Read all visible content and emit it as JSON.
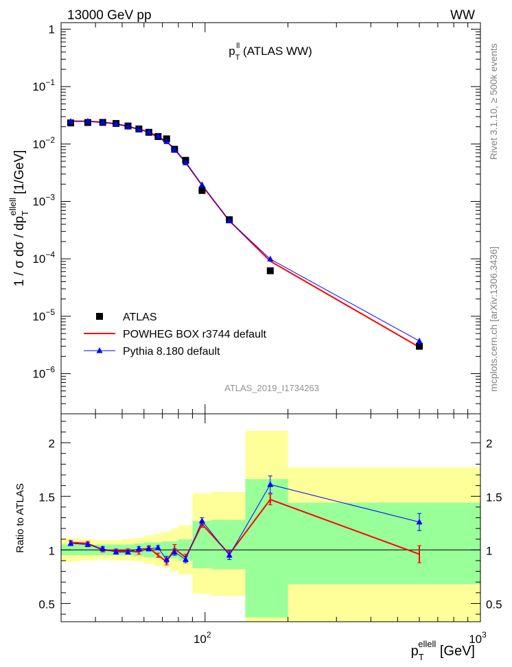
{
  "header": {
    "energy_label": "13000 GeV pp",
    "process_label": "WW"
  },
  "side_labels": {
    "rivet": "Rivet 3.1.10, ≥ 500k events",
    "mcplots": "mcplots.cern.ch [arXiv:1306.3436]"
  },
  "chart_data": {
    "type": "line",
    "title": "p_T^ll (ATLAS WW)",
    "title_main": "p",
    "title_sub": "T",
    "title_sup": "ll",
    "title_rest": " (ATLAS WW)",
    "analysis_id": "ATLAS_2019_I1734263",
    "xscale": "log",
    "xlim": [
      30,
      1000
    ],
    "xlabel": "p_T^ellell [GeV]",
    "xlabel_main": "p",
    "xlabel_sub": "T",
    "xlabel_sup": "ellell",
    "xlabel_unit": " [GeV]",
    "x_major_ticks": [
      {
        "value": 100,
        "base": "10",
        "exp": "2"
      },
      {
        "value": 1000,
        "base": "10",
        "exp": "3"
      }
    ],
    "main_panel": {
      "yscale": "log",
      "ylim": [
        2e-07,
        1.3
      ],
      "ylabel": "1 / σ dσ / dp_T^ellell [1/GeV]",
      "ylabel_pre": "1 / σ  dσ / dp",
      "ylabel_sub": "T",
      "ylabel_sup": "ellell",
      "ylabel_unit": " [1/GeV]",
      "y_tick_labels": [
        {
          "value": 1,
          "base": "1",
          "exp": ""
        },
        {
          "value": 0.1,
          "base": "10",
          "exp": "−1"
        },
        {
          "value": 0.01,
          "base": "10",
          "exp": "−2"
        },
        {
          "value": 0.001,
          "base": "10",
          "exp": "−3"
        },
        {
          "value": 0.0001,
          "base": "10",
          "exp": "−4"
        },
        {
          "value": 1e-05,
          "base": "10",
          "exp": "−5"
        },
        {
          "value": 1e-06,
          "base": "10",
          "exp": "−6"
        }
      ],
      "series": [
        {
          "name": "ATLAS",
          "marker": "square",
          "color": "#000000",
          "x": [
            32.5,
            37.5,
            42.5,
            47.5,
            52.5,
            57.5,
            62.5,
            67.5,
            72.5,
            77.5,
            85,
            97.5,
            122.5,
            172.5,
            600
          ],
          "y": [
            0.0233,
            0.0237,
            0.0238,
            0.0228,
            0.0206,
            0.0183,
            0.016,
            0.0135,
            0.0123,
            0.0081,
            0.0052,
            0.00155,
            0.00048,
            6.2e-05,
            3e-06
          ]
        },
        {
          "name": "POWHEG BOX r3744 default",
          "marker": "line",
          "color": "#ff0000",
          "x": [
            32.5,
            37.5,
            42.5,
            47.5,
            52.5,
            57.5,
            62.5,
            67.5,
            72.5,
            77.5,
            85,
            97.5,
            122.5,
            172.5,
            600
          ],
          "y": [
            0.025,
            0.025,
            0.0239,
            0.0225,
            0.0203,
            0.018,
            0.0163,
            0.0128,
            0.011,
            0.0082,
            0.0048,
            0.0019,
            0.00046,
            9.1e-05,
            2.9e-06
          ]
        },
        {
          "name": "Pythia 8.180 default",
          "marker": "triangle",
          "color": "#0000ff",
          "x": [
            32.5,
            37.5,
            42.5,
            47.5,
            52.5,
            57.5,
            62.5,
            67.5,
            72.5,
            77.5,
            85,
            97.5,
            122.5,
            172.5,
            600
          ],
          "y": [
            0.0247,
            0.0248,
            0.0239,
            0.0222,
            0.0201,
            0.0181,
            0.0162,
            0.0137,
            0.011,
            0.008,
            0.0047,
            0.00195,
            0.00046,
            9.9e-05,
            3.7e-06
          ]
        }
      ],
      "legend": [
        {
          "label": "ATLAS",
          "marker": "square",
          "color": "#000000"
        },
        {
          "label": "POWHEG BOX r3744 default",
          "marker": "line",
          "color": "#ff0000"
        },
        {
          "label": "Pythia 8.180 default",
          "marker": "triangle",
          "color": "#0000ff"
        }
      ],
      "legend_position": "bottom-left"
    },
    "ratio_panel": {
      "ylabel": "Ratio to ATLAS",
      "ylim": [
        0.33,
        2.27
      ],
      "y_tick_labels": [
        {
          "value": 0.5,
          "label": "0.5"
        },
        {
          "value": 1,
          "label": "1"
        },
        {
          "value": 1.5,
          "label": "1.5"
        },
        {
          "value": 2,
          "label": "2"
        }
      ],
      "bin_edges": [
        30,
        35,
        40,
        45,
        50,
        55,
        60,
        65,
        70,
        75,
        80,
        90,
        105,
        140,
        200,
        1000
      ],
      "band_total": [
        [
          0.89,
          1.11
        ],
        [
          0.9,
          1.1
        ],
        [
          0.91,
          1.09
        ],
        [
          0.9,
          1.09
        ],
        [
          0.9,
          1.1
        ],
        [
          0.89,
          1.11
        ],
        [
          0.87,
          1.13
        ],
        [
          0.85,
          1.15
        ],
        [
          0.83,
          1.17
        ],
        [
          0.8,
          1.2
        ],
        [
          0.77,
          1.23
        ],
        [
          0.59,
          1.53
        ],
        [
          0.57,
          1.54
        ],
        [
          0.33,
          2.11
        ],
        [
          0.33,
          1.77
        ]
      ],
      "band_stat": [
        [
          0.95,
          1.05
        ],
        [
          0.95,
          1.05
        ],
        [
          0.95,
          1.05
        ],
        [
          0.95,
          1.05
        ],
        [
          0.95,
          1.05
        ],
        [
          0.94,
          1.06
        ],
        [
          0.93,
          1.07
        ],
        [
          0.93,
          1.07
        ],
        [
          0.92,
          1.08
        ],
        [
          0.92,
          1.08
        ],
        [
          0.9,
          1.1
        ],
        [
          0.83,
          1.27
        ],
        [
          0.82,
          1.28
        ],
        [
          0.37,
          1.66
        ],
        [
          0.68,
          1.44
        ]
      ],
      "series": [
        {
          "name": "POWHEG BOX r3744 default",
          "color": "#ff0000",
          "x": [
            32.5,
            37.5,
            42.5,
            47.5,
            52.5,
            57.5,
            62.5,
            67.5,
            72.5,
            77.5,
            85,
            97.5,
            122.5,
            172.5,
            600
          ],
          "y": [
            1.07,
            1.06,
            1.0,
            0.99,
            0.99,
            0.98,
            1.02,
            0.95,
            0.89,
            1.01,
            0.93,
            1.24,
            0.96,
            1.47,
            0.96
          ],
          "err": [
            0.02,
            0.02,
            0.02,
            0.02,
            0.02,
            0.02,
            0.02,
            0.02,
            0.03,
            0.04,
            0.03,
            0.03,
            0.03,
            0.05,
            0.08
          ]
        },
        {
          "name": "Pythia 8.180 default",
          "color": "#0000ff",
          "x": [
            32.5,
            37.5,
            42.5,
            47.5,
            52.5,
            57.5,
            62.5,
            67.5,
            72.5,
            77.5,
            85,
            97.5,
            122.5,
            172.5,
            600
          ],
          "y": [
            1.06,
            1.05,
            1.01,
            0.98,
            0.98,
            1.01,
            1.01,
            1.02,
            0.91,
            0.98,
            0.91,
            1.27,
            0.95,
            1.61,
            1.26
          ],
          "err": [
            0.02,
            0.02,
            0.02,
            0.02,
            0.02,
            0.02,
            0.02,
            0.02,
            0.03,
            0.03,
            0.03,
            0.03,
            0.04,
            0.08,
            0.08
          ]
        }
      ]
    }
  }
}
